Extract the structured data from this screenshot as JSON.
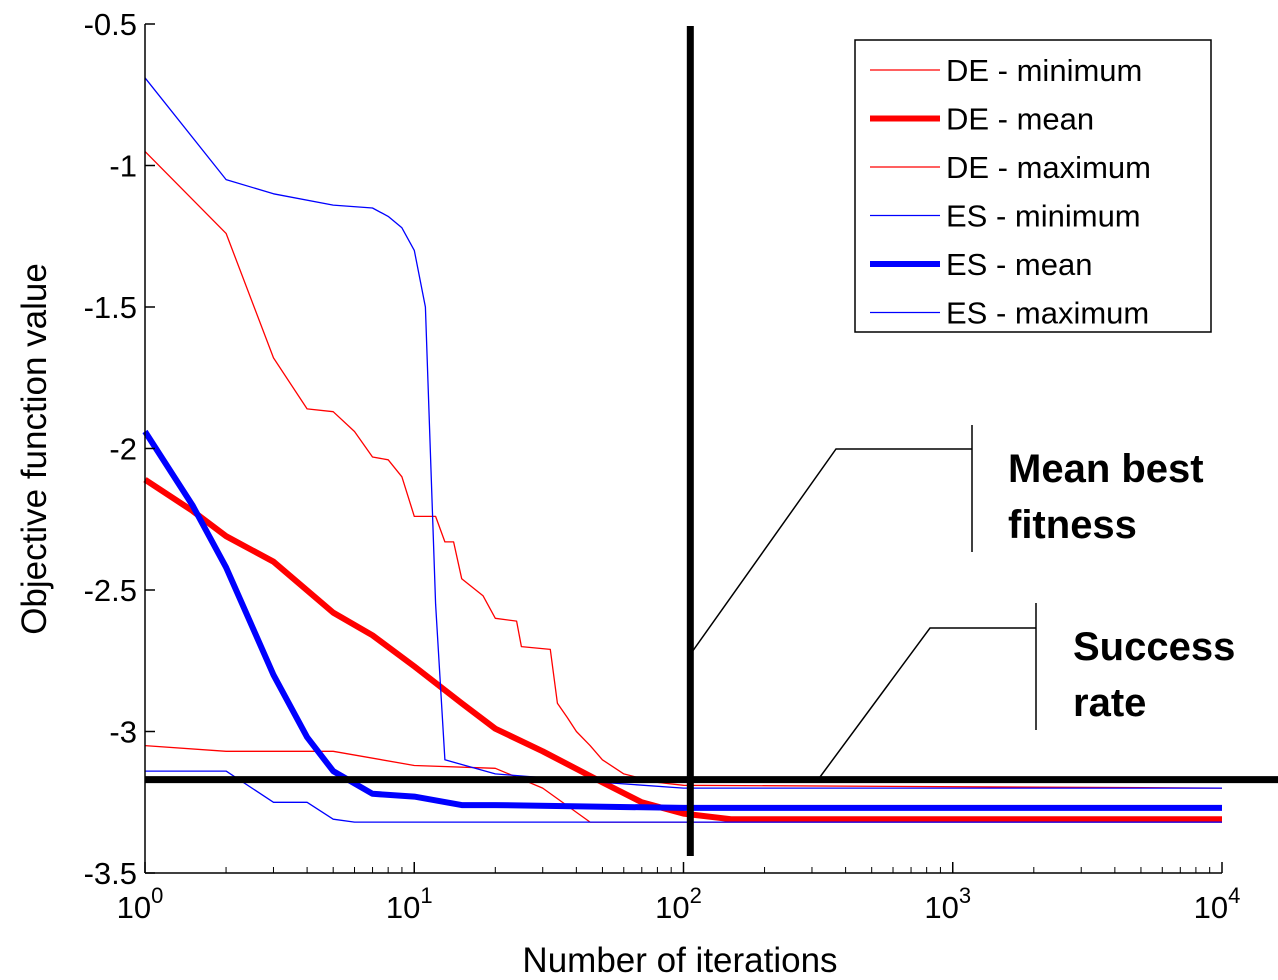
{
  "chart_data": {
    "type": "line",
    "title": "",
    "xlabel": "Number of iterations",
    "ylabel": "Objective function value",
    "x_scale": "log",
    "xlim": [
      1,
      10000
    ],
    "ylim": [
      -3.5,
      -0.5
    ],
    "grid": false,
    "legend_position": "top-right",
    "x_ticks": [
      {
        "value": 1,
        "base": "10",
        "exp": "0"
      },
      {
        "value": 10,
        "base": "10",
        "exp": "1"
      },
      {
        "value": 100,
        "base": "10",
        "exp": "2"
      },
      {
        "value": 1000,
        "base": "10",
        "exp": "3"
      },
      {
        "value": 10000,
        "base": "10",
        "exp": "4"
      }
    ],
    "y_ticks": [
      {
        "value": -0.5,
        "label": "-0.5"
      },
      {
        "value": -1,
        "label": "-1"
      },
      {
        "value": -1.5,
        "label": "-1.5"
      },
      {
        "value": -2,
        "label": "-2"
      },
      {
        "value": -2.5,
        "label": "-2.5"
      },
      {
        "value": -3,
        "label": "-3"
      },
      {
        "value": -3.5,
        "label": "-3.5"
      }
    ],
    "series": [
      {
        "name": "DE - minimum",
        "color": "#ff0000",
        "style": "thin",
        "points": [
          [
            1,
            -3.05
          ],
          [
            2,
            -3.07
          ],
          [
            5,
            -3.07
          ],
          [
            10,
            -3.12
          ],
          [
            20,
            -3.13
          ],
          [
            30,
            -3.2
          ],
          [
            45,
            -3.32
          ],
          [
            100,
            -3.32
          ],
          [
            10000,
            -3.32
          ]
        ]
      },
      {
        "name": "DE - mean",
        "color": "#ff0000",
        "style": "thick",
        "points": [
          [
            1,
            -2.11
          ],
          [
            1.5,
            -2.22
          ],
          [
            2,
            -2.31
          ],
          [
            3,
            -2.4
          ],
          [
            5,
            -2.58
          ],
          [
            7,
            -2.66
          ],
          [
            10,
            -2.77
          ],
          [
            15,
            -2.9
          ],
          [
            20,
            -2.99
          ],
          [
            30,
            -3.07
          ],
          [
            50,
            -3.18
          ],
          [
            70,
            -3.25
          ],
          [
            100,
            -3.29
          ],
          [
            150,
            -3.31
          ],
          [
            200,
            -3.31
          ],
          [
            10000,
            -3.31
          ]
        ]
      },
      {
        "name": "DE - maximum",
        "color": "#ff0000",
        "style": "thin",
        "points": [
          [
            1,
            -0.95
          ],
          [
            2,
            -1.24
          ],
          [
            3,
            -1.68
          ],
          [
            4,
            -1.86
          ],
          [
            5,
            -1.87
          ],
          [
            6,
            -1.94
          ],
          [
            7,
            -2.03
          ],
          [
            8,
            -2.04
          ],
          [
            9,
            -2.1
          ],
          [
            10,
            -2.24
          ],
          [
            12,
            -2.24
          ],
          [
            13,
            -2.33
          ],
          [
            14,
            -2.33
          ],
          [
            15,
            -2.46
          ],
          [
            18,
            -2.52
          ],
          [
            20,
            -2.6
          ],
          [
            24,
            -2.61
          ],
          [
            25,
            -2.7
          ],
          [
            32,
            -2.71
          ],
          [
            34,
            -2.9
          ],
          [
            37,
            -2.95
          ],
          [
            40,
            -3.0
          ],
          [
            45,
            -3.05
          ],
          [
            50,
            -3.1
          ],
          [
            60,
            -3.15
          ],
          [
            80,
            -3.18
          ],
          [
            100,
            -3.19
          ],
          [
            10000,
            -3.2
          ]
        ]
      },
      {
        "name": "ES - minimum",
        "color": "#0000ff",
        "style": "thin",
        "points": [
          [
            1,
            -3.14
          ],
          [
            2,
            -3.14
          ],
          [
            3,
            -3.25
          ],
          [
            4,
            -3.25
          ],
          [
            5,
            -3.31
          ],
          [
            6,
            -3.32
          ],
          [
            10,
            -3.32
          ],
          [
            10000,
            -3.32
          ]
        ]
      },
      {
        "name": "ES - mean",
        "color": "#0000ff",
        "style": "thick",
        "points": [
          [
            1,
            -1.94
          ],
          [
            1.5,
            -2.2
          ],
          [
            2,
            -2.42
          ],
          [
            3,
            -2.8
          ],
          [
            4,
            -3.02
          ],
          [
            5,
            -3.14
          ],
          [
            7,
            -3.22
          ],
          [
            10,
            -3.23
          ],
          [
            15,
            -3.26
          ],
          [
            20,
            -3.26
          ],
          [
            100,
            -3.27
          ],
          [
            10000,
            -3.27
          ]
        ]
      },
      {
        "name": "ES - maximum",
        "color": "#0000ff",
        "style": "thin",
        "points": [
          [
            1,
            -0.69
          ],
          [
            2,
            -1.05
          ],
          [
            3,
            -1.1
          ],
          [
            5,
            -1.14
          ],
          [
            7,
            -1.15
          ],
          [
            8,
            -1.18
          ],
          [
            9,
            -1.22
          ],
          [
            10,
            -1.3
          ],
          [
            11,
            -1.5
          ],
          [
            12,
            -2.55
          ],
          [
            13,
            -3.1
          ],
          [
            20,
            -3.15
          ],
          [
            50,
            -3.18
          ],
          [
            100,
            -3.2
          ],
          [
            10000,
            -3.2
          ]
        ]
      }
    ],
    "annotations": [
      {
        "name": "vertical-marker",
        "x": 106
      },
      {
        "name": "horizontal-marker",
        "y": -3.17
      }
    ],
    "callouts": {
      "mean_best_fitness": {
        "lines": [
          "Mean best",
          "fitness"
        ]
      },
      "success_rate": {
        "lines": [
          "Success",
          "rate"
        ]
      }
    }
  }
}
